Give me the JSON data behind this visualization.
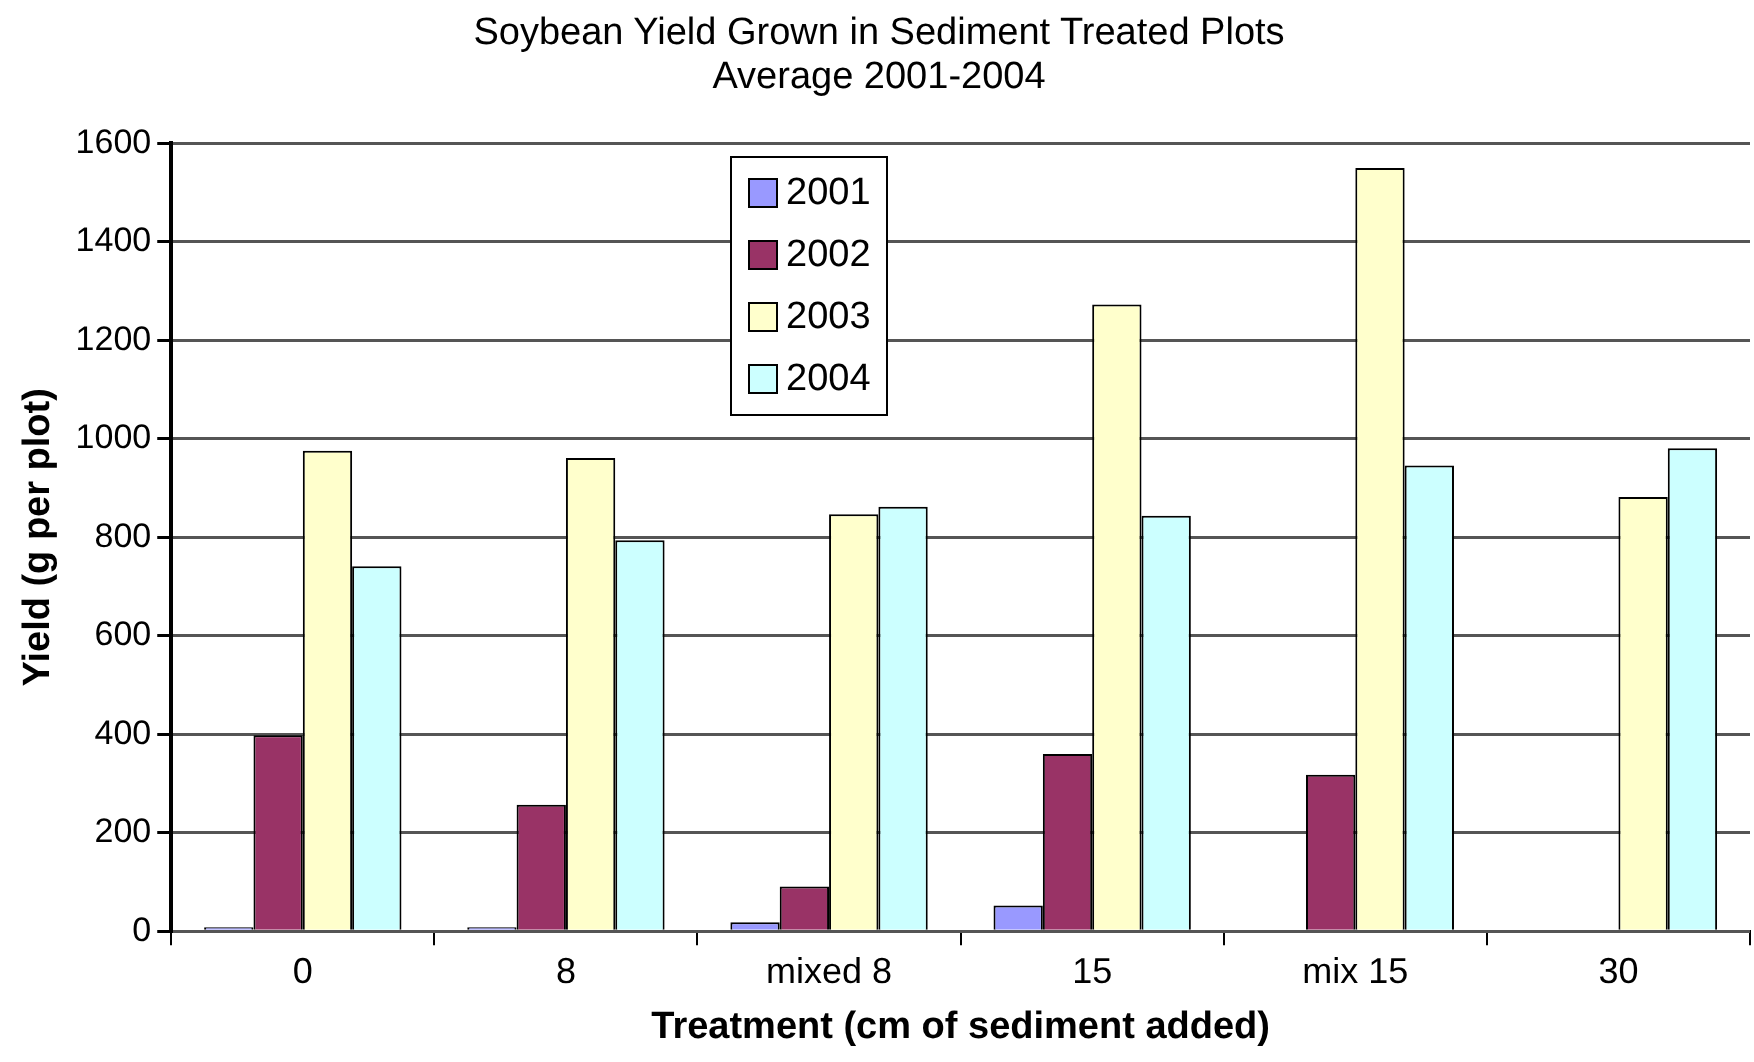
{
  "chart_data": {
    "type": "bar",
    "title": "Soybean Yield Grown in Sediment Treated Plots",
    "subtitle": "Average 2001-2004",
    "xlabel": "Treatment (cm of sediment added)",
    "ylabel": "Yield (g per plot)",
    "categories": [
      "0",
      "8",
      "mixed 8",
      "15",
      "mix 15",
      "30"
    ],
    "series": [
      {
        "name": "2001",
        "color": "#9999ff",
        "values": [
          8,
          8,
          18,
          52,
          null,
          null
        ]
      },
      {
        "name": "2002",
        "color": "#993366",
        "values": [
          398,
          257,
          91,
          360,
          318,
          null
        ]
      },
      {
        "name": "2003",
        "color": "#ffffcc",
        "values": [
          976,
          961,
          847,
          1273,
          1550,
          882
        ]
      },
      {
        "name": "2004",
        "color": "#ccffff",
        "values": [
          741,
          794,
          862,
          844,
          946,
          981
        ]
      }
    ],
    "ylim": [
      0,
      1600
    ],
    "yticks": [
      0,
      200,
      400,
      600,
      800,
      1000,
      1200,
      1400,
      1600
    ],
    "grid": "y",
    "legend": "top"
  }
}
